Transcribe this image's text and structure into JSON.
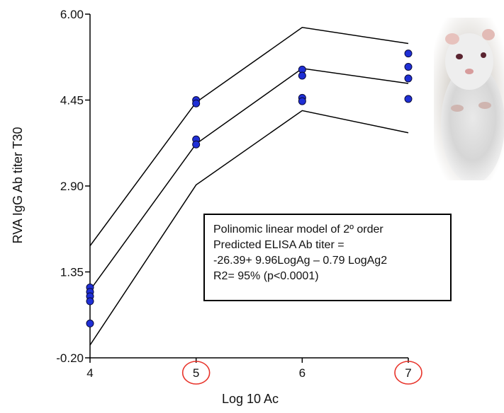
{
  "chart_data": {
    "type": "scatter",
    "title": "",
    "xlabel": "Log 10 Ac",
    "ylabel": "RVA IgG Ab titer T30",
    "xlim": [
      4,
      7
    ],
    "ylim": [
      -0.2,
      6.0
    ],
    "x_ticks": [
      "4",
      "5",
      "6",
      "7"
    ],
    "y_ticks": [
      "-0.20",
      "1.35",
      "2.90",
      "4.45",
      "6.00"
    ],
    "circled_x_ticks": [
      "5",
      "7"
    ],
    "points": {
      "x": [
        4,
        4,
        4,
        4,
        4,
        5,
        5,
        5,
        5,
        6,
        6,
        6,
        6,
        7,
        7,
        7,
        7
      ],
      "y": [
        1.07,
        0.99,
        0.91,
        0.82,
        0.42,
        4.45,
        4.39,
        3.74,
        3.65,
        5.0,
        4.89,
        4.49,
        4.43,
        5.29,
        5.05,
        4.84,
        4.47
      ]
    },
    "series": [
      {
        "x": [
          4,
          5,
          6,
          7
        ],
        "y": [
          1.82,
          4.41,
          5.76,
          5.47
        ]
      },
      {
        "x": [
          4,
          5,
          6,
          7
        ],
        "y": [
          1.02,
          3.66,
          5.02,
          4.75
        ]
      },
      {
        "x": [
          4,
          5,
          6,
          7
        ],
        "y": [
          0.03,
          2.92,
          4.26,
          3.86
        ]
      }
    ],
    "annotations": [
      "Polinomic linear model of 2º order",
      "Predicted ELISA Ab titer =",
      "-26.39+ 9.96LogAg – 0.79 LogAg2",
      "R2= 95% (p<0.0001)"
    ],
    "grid": false,
    "colors": {
      "points": "#1f2fd6",
      "point_edge": "#0a0a3a",
      "lines": "#000000",
      "circle": "#e8332a"
    }
  },
  "image": {
    "subject": "white guinea pig photo"
  }
}
